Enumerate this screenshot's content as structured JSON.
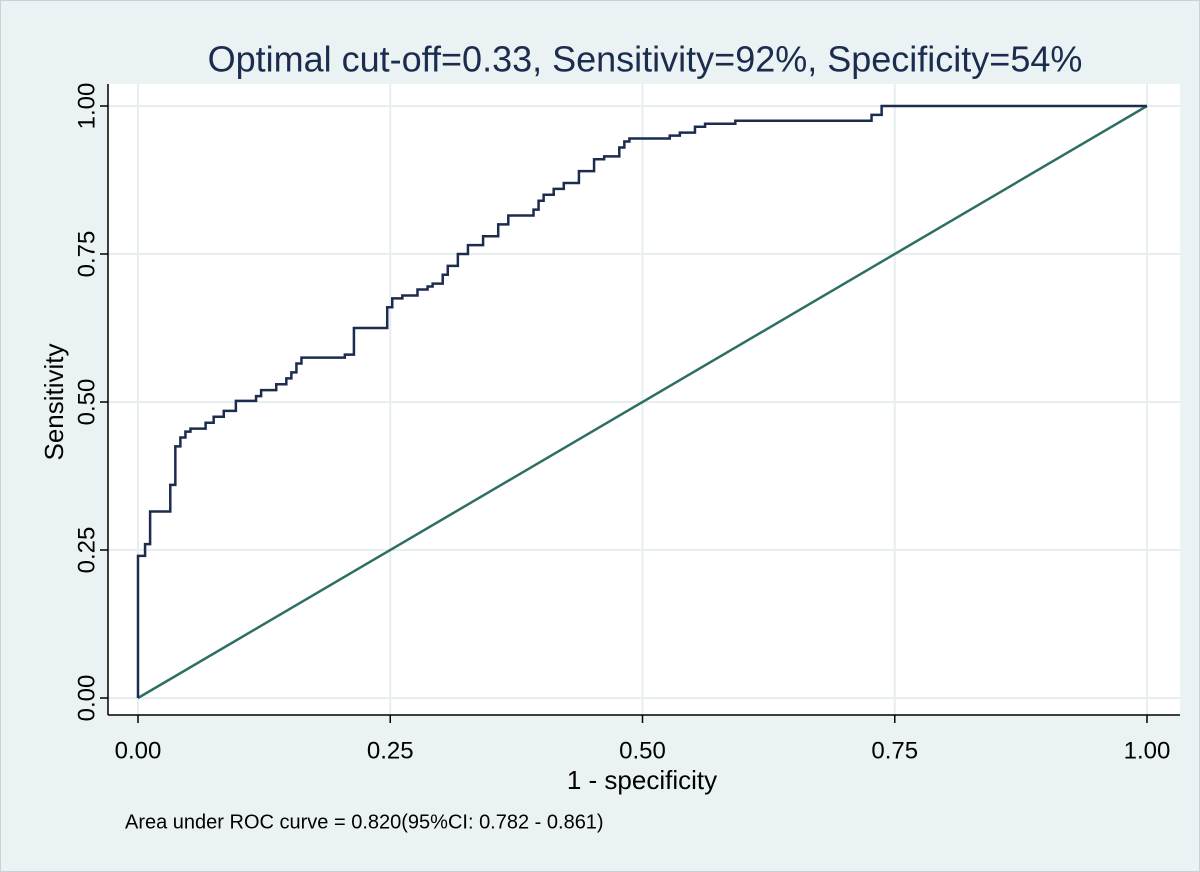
{
  "chart_data": {
    "type": "line",
    "title": "Optimal cut-off=0.33, Sensitivity=92%, Specificity=54%",
    "xlabel": "1 - specificity",
    "ylabel": "Sensitivity",
    "note": "Area under ROC curve = 0.820(95%CI: 0.782 - 0.861)",
    "xlim": [
      -0.0,
      1.0
    ],
    "ylim": [
      0,
      1
    ],
    "xticks": [
      {
        "value": 0,
        "label": "0.00"
      },
      {
        "value": 0.25,
        "label": "0.25"
      },
      {
        "value": 0.5,
        "label": "0.50"
      },
      {
        "value": 0.75,
        "label": "0.75"
      },
      {
        "value": 1,
        "label": "1.00"
      }
    ],
    "yticks": [
      {
        "value": 0,
        "label": "0.00"
      },
      {
        "value": 0.25,
        "label": "0.25"
      },
      {
        "value": 0.5,
        "label": "0.50"
      },
      {
        "value": 0.75,
        "label": "0.75"
      },
      {
        "value": 1,
        "label": "1.00"
      }
    ],
    "grid": true,
    "series": [
      {
        "color": "#1b2c4e",
        "x": [
          0,
          0,
          0.007,
          0.007,
          0.012,
          0.012,
          0.032,
          0.032,
          0.037,
          0.037,
          0.042,
          0.042,
          0.047,
          0.047,
          0.052,
          0.052,
          0.067,
          0.067,
          0.075,
          0.075,
          0.085,
          0.085,
          0.097,
          0.097,
          0.117,
          0.117,
          0.122,
          0.122,
          0.137,
          0.137,
          0.147,
          0.147,
          0.152,
          0.152,
          0.157,
          0.157,
          0.162,
          0.162,
          0.205,
          0.205,
          0.214,
          0.214,
          0.247,
          0.247,
          0.252,
          0.252,
          0.262,
          0.262,
          0.277,
          0.277,
          0.287,
          0.287,
          0.292,
          0.292,
          0.302,
          0.302,
          0.307,
          0.307,
          0.317,
          0.317,
          0.327,
          0.327,
          0.342,
          0.342,
          0.357,
          0.357,
          0.367,
          0.367,
          0.392,
          0.392,
          0.397,
          0.397,
          0.402,
          0.402,
          0.412,
          0.412,
          0.422,
          0.422,
          0.437,
          0.437,
          0.452,
          0.452,
          0.462,
          0.462,
          0.477,
          0.477,
          0.482,
          0.482,
          0.487,
          0.487,
          0.527,
          0.527,
          0.537,
          0.537,
          0.552,
          0.552,
          0.562,
          0.562,
          0.592,
          0.592,
          0.727,
          0.727,
          0.737,
          0.737,
          1
        ],
        "values": [
          0,
          0.24,
          0.24,
          0.26,
          0.26,
          0.315,
          0.315,
          0.36,
          0.36,
          0.425,
          0.425,
          0.44,
          0.44,
          0.45,
          0.45,
          0.455,
          0.455,
          0.465,
          0.465,
          0.475,
          0.475,
          0.485,
          0.485,
          0.502,
          0.502,
          0.51,
          0.51,
          0.52,
          0.52,
          0.53,
          0.53,
          0.54,
          0.54,
          0.55,
          0.55,
          0.565,
          0.565,
          0.575,
          0.575,
          0.58,
          0.58,
          0.625,
          0.625,
          0.66,
          0.66,
          0.675,
          0.675,
          0.68,
          0.68,
          0.69,
          0.69,
          0.695,
          0.695,
          0.7,
          0.7,
          0.715,
          0.715,
          0.73,
          0.73,
          0.75,
          0.75,
          0.765,
          0.765,
          0.78,
          0.78,
          0.8,
          0.8,
          0.815,
          0.815,
          0.825,
          0.825,
          0.84,
          0.84,
          0.85,
          0.85,
          0.86,
          0.86,
          0.87,
          0.87,
          0.89,
          0.89,
          0.91,
          0.91,
          0.915,
          0.915,
          0.93,
          0.93,
          0.94,
          0.94,
          0.945,
          0.945,
          0.95,
          0.95,
          0.955,
          0.955,
          0.965,
          0.965,
          0.97,
          0.97,
          0.975,
          0.975,
          0.985,
          0.985,
          1,
          1
        ]
      },
      {
        "color": "#2e6e64",
        "x": [
          0,
          1
        ],
        "values": [
          0,
          1
        ]
      }
    ]
  }
}
